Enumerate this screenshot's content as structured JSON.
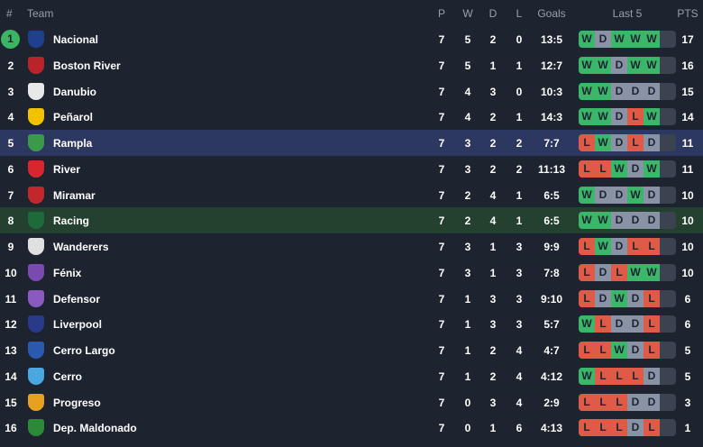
{
  "header": {
    "pos": "#",
    "team": "Team",
    "p": "P",
    "w": "W",
    "d": "D",
    "l": "L",
    "goals": "Goals",
    "last5": "Last 5",
    "pts": "PTS"
  },
  "colors": {
    "win": "#3bb76a",
    "draw": "#8a92a6",
    "loss": "#e05a48",
    "leader": "#3bb464",
    "highlight_blue": "#2c3860",
    "highlight_green": "#24402e"
  },
  "rows": [
    {
      "pos": "1",
      "team": "Nacional",
      "p": "7",
      "w": "5",
      "d": "2",
      "l": "0",
      "goals": "13:5",
      "form": [
        "W",
        "D",
        "W",
        "W",
        "W"
      ],
      "pts": "17",
      "crest": "#1f3f8f"
    },
    {
      "pos": "2",
      "team": "Boston River",
      "p": "7",
      "w": "5",
      "d": "1",
      "l": "1",
      "goals": "12:7",
      "form": [
        "W",
        "W",
        "D",
        "W",
        "W"
      ],
      "pts": "16",
      "crest": "#b8242a"
    },
    {
      "pos": "3",
      "team": "Danubio",
      "p": "7",
      "w": "4",
      "d": "3",
      "l": "0",
      "goals": "10:3",
      "form": [
        "W",
        "W",
        "D",
        "D",
        "D"
      ],
      "pts": "15",
      "crest": "#e8e8e8"
    },
    {
      "pos": "4",
      "team": "Peñarol",
      "p": "7",
      "w": "4",
      "d": "2",
      "l": "1",
      "goals": "14:3",
      "form": [
        "W",
        "W",
        "D",
        "L",
        "W"
      ],
      "pts": "14",
      "crest": "#f2c200"
    },
    {
      "pos": "5",
      "team": "Rampla",
      "p": "7",
      "w": "3",
      "d": "2",
      "l": "2",
      "goals": "7:7",
      "form": [
        "L",
        "W",
        "D",
        "L",
        "D"
      ],
      "pts": "11",
      "crest": "#3a9a4a",
      "hl": "hl-blue"
    },
    {
      "pos": "6",
      "team": "River",
      "p": "7",
      "w": "3",
      "d": "2",
      "l": "2",
      "goals": "11:13",
      "form": [
        "L",
        "L",
        "W",
        "D",
        "W"
      ],
      "pts": "11",
      "crest": "#d8262e"
    },
    {
      "pos": "7",
      "team": "Miramar",
      "p": "7",
      "w": "2",
      "d": "4",
      "l": "1",
      "goals": "6:5",
      "form": [
        "W",
        "D",
        "D",
        "W",
        "D"
      ],
      "pts": "10",
      "crest": "#c0282c"
    },
    {
      "pos": "8",
      "team": "Racing",
      "p": "7",
      "w": "2",
      "d": "4",
      "l": "1",
      "goals": "6:5",
      "form": [
        "W",
        "W",
        "D",
        "D",
        "D"
      ],
      "pts": "10",
      "crest": "#1f6a3a",
      "hl": "hl-green"
    },
    {
      "pos": "9",
      "team": "Wanderers",
      "p": "7",
      "w": "3",
      "d": "1",
      "l": "3",
      "goals": "9:9",
      "form": [
        "L",
        "W",
        "D",
        "L",
        "L"
      ],
      "pts": "10",
      "crest": "#e0e0e0"
    },
    {
      "pos": "10",
      "team": "Fénix",
      "p": "7",
      "w": "3",
      "d": "1",
      "l": "3",
      "goals": "7:8",
      "form": [
        "L",
        "D",
        "L",
        "W",
        "W"
      ],
      "pts": "10",
      "crest": "#7a4ab0"
    },
    {
      "pos": "11",
      "team": "Defensor",
      "p": "7",
      "w": "1",
      "d": "3",
      "l": "3",
      "goals": "9:10",
      "form": [
        "L",
        "D",
        "W",
        "D",
        "L"
      ],
      "pts": "6",
      "crest": "#8a5ac0"
    },
    {
      "pos": "12",
      "team": "Liverpool",
      "p": "7",
      "w": "1",
      "d": "3",
      "l": "3",
      "goals": "5:7",
      "form": [
        "W",
        "L",
        "D",
        "D",
        "L"
      ],
      "pts": "6",
      "crest": "#2a3a8a"
    },
    {
      "pos": "13",
      "team": "Cerro Largo",
      "p": "7",
      "w": "1",
      "d": "2",
      "l": "4",
      "goals": "4:7",
      "form": [
        "L",
        "L",
        "W",
        "D",
        "L"
      ],
      "pts": "5",
      "crest": "#2a5ab0"
    },
    {
      "pos": "14",
      "team": "Cerro",
      "p": "7",
      "w": "1",
      "d": "2",
      "l": "4",
      "goals": "4:12",
      "form": [
        "W",
        "L",
        "L",
        "L",
        "D"
      ],
      "pts": "5",
      "crest": "#4aa8e0"
    },
    {
      "pos": "15",
      "team": "Progreso",
      "p": "7",
      "w": "0",
      "d": "3",
      "l": "4",
      "goals": "2:9",
      "form": [
        "L",
        "L",
        "L",
        "D",
        "D"
      ],
      "pts": "3",
      "crest": "#e8a020"
    },
    {
      "pos": "16",
      "team": "Dep. Maldonado",
      "p": "7",
      "w": "0",
      "d": "1",
      "l": "6",
      "goals": "4:13",
      "form": [
        "L",
        "L",
        "L",
        "D",
        "L"
      ],
      "pts": "1",
      "crest": "#2a8a3a"
    }
  ]
}
